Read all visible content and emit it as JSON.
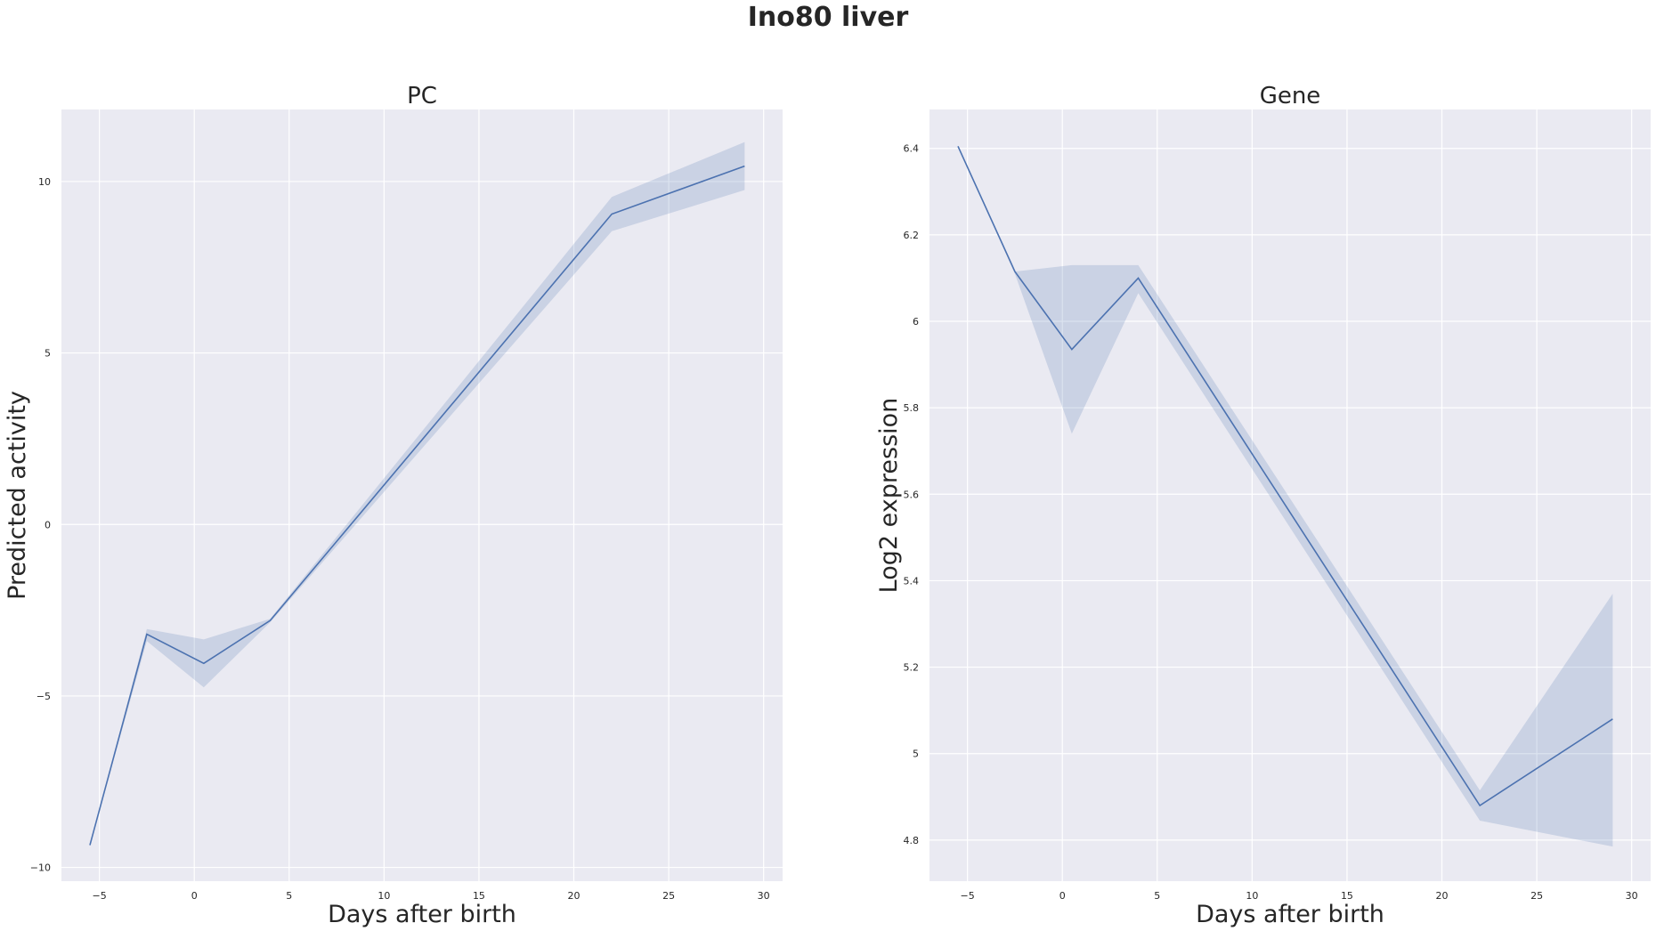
{
  "title": "Ino80 liver",
  "chart_data": [
    {
      "type": "line",
      "title": "PC",
      "xlabel": "Days after birth",
      "ylabel": "Predicted activity",
      "xlim": [
        -7,
        31
      ],
      "ylim": [
        -10.4,
        12.1
      ],
      "xticks": [
        -5,
        0,
        5,
        10,
        15,
        20,
        25,
        30
      ],
      "yticks": [
        -10,
        -5,
        0,
        5,
        10
      ],
      "grid": true,
      "series": [
        {
          "color": "#4c72b0",
          "x": [
            -5.5,
            -2.5,
            0.5,
            4,
            22,
            29
          ],
          "y": [
            -9.35,
            -3.2,
            -4.05,
            -2.8,
            9.05,
            10.45
          ],
          "ci_low": [
            -9.35,
            -3.4,
            -4.75,
            -2.85,
            8.55,
            9.75
          ],
          "ci_high": [
            -9.35,
            -3.05,
            -3.35,
            -2.75,
            9.55,
            11.15
          ]
        }
      ]
    },
    {
      "type": "line",
      "title": "Gene",
      "xlabel": "Days after birth",
      "ylabel": "Log2 expression",
      "xlim": [
        -7,
        31
      ],
      "ylim": [
        4.705,
        6.49
      ],
      "xticks": [
        -5,
        0,
        5,
        10,
        15,
        20,
        25,
        30
      ],
      "yticks": [
        4.8,
        5.0,
        5.2,
        5.4,
        5.6,
        5.8,
        6.0,
        6.2,
        6.4
      ],
      "grid": true,
      "series": [
        {
          "color": "#4c72b0",
          "x": [
            -5.5,
            -2.5,
            0.5,
            4,
            22,
            29
          ],
          "y": [
            6.405,
            6.115,
            5.935,
            6.1,
            4.88,
            5.08
          ],
          "ci_low": [
            6.405,
            6.11,
            5.74,
            6.065,
            4.845,
            4.785
          ],
          "ci_high": [
            6.405,
            6.115,
            6.13,
            6.13,
            4.915,
            5.37
          ]
        }
      ]
    }
  ]
}
